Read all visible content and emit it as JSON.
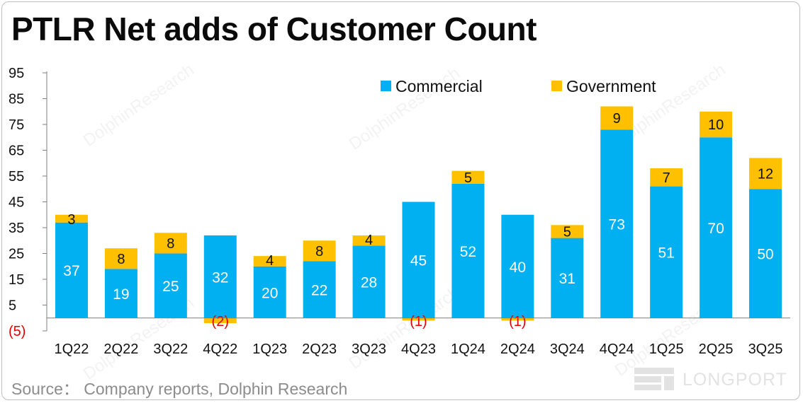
{
  "title": "PTLR Net adds of Customer Count",
  "source": "Source： Company reports, Dolphin Research",
  "watermark": {
    "brand": "LONGPORT"
  },
  "chart_data": {
    "type": "bar",
    "stacked": true,
    "title": "PTLR Net adds of Customer Count",
    "xlabel": "",
    "ylabel": "",
    "categories": [
      "1Q22",
      "2Q22",
      "3Q22",
      "4Q22",
      "1Q23",
      "2Q23",
      "3Q23",
      "4Q23",
      "1Q24",
      "2Q24",
      "3Q24",
      "4Q24",
      "1Q25",
      "2Q25",
      "3Q25"
    ],
    "series": [
      {
        "name": "Commercial",
        "color": "#00B0F0",
        "values": [
          37,
          19,
          25,
          32,
          20,
          22,
          28,
          45,
          52,
          40,
          31,
          73,
          51,
          70,
          50
        ]
      },
      {
        "name": "Government",
        "color": "#FFC000",
        "values": [
          3,
          8,
          8,
          -2,
          4,
          8,
          4,
          -1,
          5,
          -1,
          5,
          9,
          7,
          10,
          12
        ]
      }
    ],
    "ylim": [
      -5,
      95
    ],
    "yticks": [
      -5,
      5,
      15,
      25,
      35,
      45,
      55,
      65,
      75,
      85,
      95
    ],
    "ytick_labels": [
      "(5)",
      "5",
      "15",
      "25",
      "35",
      "45",
      "55",
      "65",
      "75",
      "85",
      "95"
    ],
    "commercial_labels": [
      "37",
      "19",
      "25",
      "32",
      "20",
      "22",
      "28",
      "45",
      "52",
      "40",
      "31",
      "73",
      "51",
      "70",
      "50"
    ],
    "government_labels": [
      "3",
      "8",
      "8",
      "(2)",
      "4",
      "8",
      "4",
      "(1)",
      "5",
      "(1)",
      "5",
      "9",
      "7",
      "10",
      "12"
    ],
    "legend_position": "top-right",
    "negative_label_color": "#E00000"
  }
}
